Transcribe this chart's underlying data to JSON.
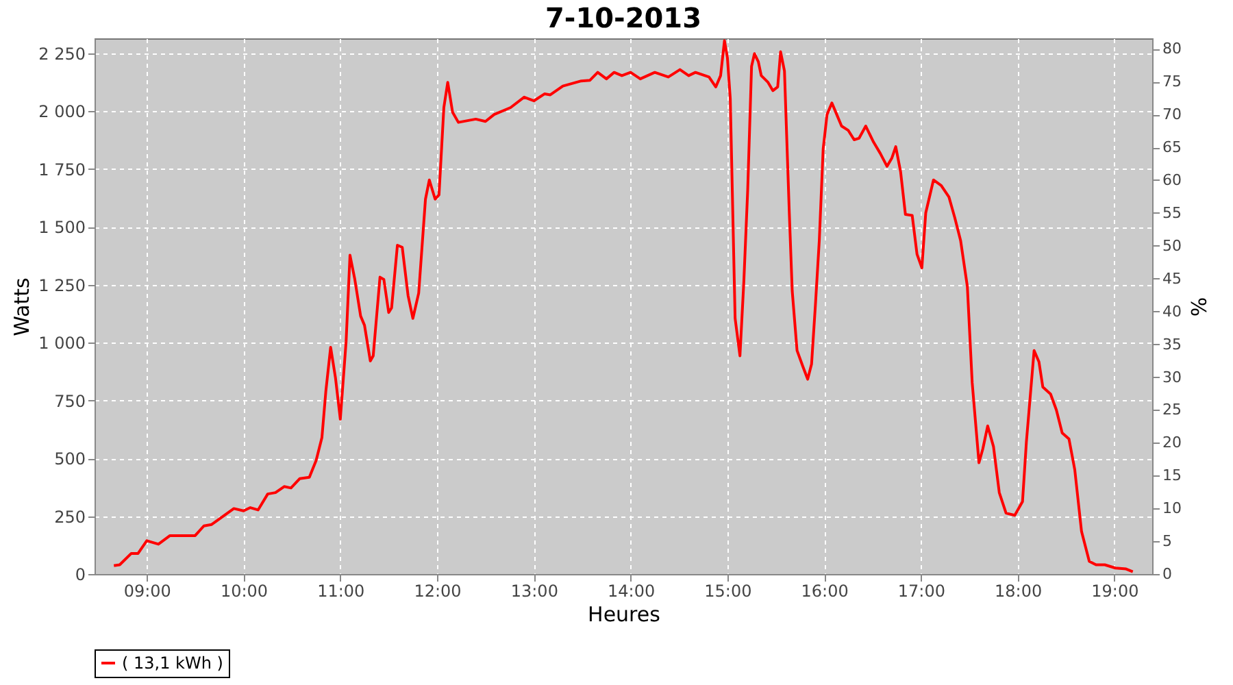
{
  "chart_data": {
    "type": "line",
    "title": "7-10-2013",
    "xlabel": "Heures",
    "ylabel": "Watts",
    "y2label": "%",
    "xlim": [
      8.46,
      19.39
    ],
    "xticks": [
      {
        "value": 9,
        "label": "09:00"
      },
      {
        "value": 10,
        "label": "10:00"
      },
      {
        "value": 11,
        "label": "11:00"
      },
      {
        "value": 12,
        "label": "12:00"
      },
      {
        "value": 13,
        "label": "13:00"
      },
      {
        "value": 14,
        "label": "14:00"
      },
      {
        "value": 15,
        "label": "15:00"
      },
      {
        "value": 16,
        "label": "16:00"
      },
      {
        "value": 17,
        "label": "17:00"
      },
      {
        "value": 18,
        "label": "18:00"
      },
      {
        "value": 19,
        "label": "19:00"
      }
    ],
    "ylim": [
      0,
      2315
    ],
    "yticks": [
      0,
      250,
      500,
      750,
      {
        "value": 1000,
        "label": "1 000"
      },
      {
        "value": 1250,
        "label": "1 250"
      },
      {
        "value": 1500,
        "label": "1 500"
      },
      {
        "value": 1750,
        "label": "1 750"
      },
      {
        "value": 2000,
        "label": "2 000"
      },
      {
        "value": 2250,
        "label": "2 250"
      }
    ],
    "y2lim": [
      0,
      81.6
    ],
    "y2ticks": [
      0,
      5,
      10,
      15,
      20,
      25,
      30,
      35,
      40,
      45,
      50,
      55,
      60,
      65,
      70,
      75,
      80
    ],
    "grid": true,
    "legend": "bottom",
    "line_style": "solid",
    "series": [
      {
        "name": "( 13,1 kWh )",
        "color": "#ff0000",
        "x": [
          8.66,
          8.72,
          8.84,
          8.91,
          9.0,
          9.12,
          9.24,
          9.5,
          9.59,
          9.67,
          9.9,
          10.0,
          10.07,
          10.15,
          10.25,
          10.33,
          10.42,
          10.49,
          10.58,
          10.68,
          10.75,
          10.81,
          10.85,
          10.9,
          10.95,
          11.0,
          11.06,
          11.1,
          11.15,
          11.21,
          11.25,
          11.31,
          11.34,
          11.41,
          11.45,
          11.5,
          11.53,
          11.59,
          11.64,
          11.7,
          11.75,
          11.81,
          11.88,
          11.92,
          11.98,
          12.02,
          12.07,
          12.11,
          12.16,
          12.22,
          12.4,
          12.5,
          12.59,
          12.76,
          12.9,
          13.0,
          13.11,
          13.17,
          13.3,
          13.49,
          13.58,
          13.66,
          13.75,
          13.83,
          13.91,
          14.0,
          14.1,
          14.25,
          14.39,
          14.51,
          14.6,
          14.67,
          14.81,
          14.88,
          14.93,
          14.97,
          15.0,
          15.03,
          15.08,
          15.13,
          15.17,
          15.21,
          15.25,
          15.28,
          15.32,
          15.35,
          15.42,
          15.47,
          15.52,
          15.55,
          15.59,
          15.64,
          15.67,
          15.72,
          15.78,
          15.83,
          15.87,
          15.91,
          15.95,
          15.99,
          16.03,
          16.08,
          16.13,
          16.18,
          16.25,
          16.31,
          16.36,
          16.43,
          16.51,
          16.58,
          16.65,
          16.7,
          16.74,
          16.79,
          16.84,
          16.91,
          16.96,
          17.01,
          17.05,
          17.13,
          17.21,
          17.29,
          17.35,
          17.41,
          17.48,
          17.53,
          17.6,
          17.64,
          17.69,
          17.75,
          17.81,
          17.88,
          17.97,
          18.05,
          18.09,
          18.17,
          18.22,
          18.26,
          18.34,
          18.4,
          18.46,
          18.53,
          18.59,
          18.66,
          18.74,
          18.81,
          18.9,
          19.01,
          19.12,
          19.19
        ],
        "values": [
          36,
          40,
          89,
          89,
          144,
          129,
          166,
          166,
          208,
          214,
          283,
          273,
          287,
          277,
          346,
          352,
          378,
          372,
          412,
          418,
          491,
          590,
          788,
          980,
          848,
          669,
          1006,
          1378,
          1273,
          1115,
          1075,
          921,
          943,
          1283,
          1273,
          1130,
          1150,
          1421,
          1412,
          1204,
          1105,
          1214,
          1620,
          1703,
          1620,
          1639,
          2016,
          2125,
          1996,
          1952,
          1966,
          1956,
          1986,
          2016,
          2061,
          2045,
          2075,
          2071,
          2109,
          2131,
          2134,
          2168,
          2140,
          2168,
          2154,
          2168,
          2140,
          2168,
          2148,
          2180,
          2154,
          2168,
          2148,
          2105,
          2154,
          2305,
          2233,
          2055,
          1105,
          943,
          1263,
          1659,
          2194,
          2249,
          2214,
          2154,
          2125,
          2089,
          2105,
          2257,
          2174,
          1561,
          1224,
          966,
          897,
          842,
          907,
          1164,
          1442,
          1837,
          1986,
          2036,
          1986,
          1936,
          1917,
          1877,
          1883,
          1936,
          1867,
          1818,
          1762,
          1798,
          1847,
          1739,
          1554,
          1550,
          1382,
          1323,
          1561,
          1703,
          1679,
          1629,
          1540,
          1442,
          1243,
          827,
          481,
          541,
          640,
          551,
          352,
          263,
          254,
          313,
          570,
          966,
          917,
          808,
          778,
          709,
          610,
          584,
          451,
          184,
          55,
          40,
          40,
          26,
          22,
          10
        ]
      }
    ]
  }
}
